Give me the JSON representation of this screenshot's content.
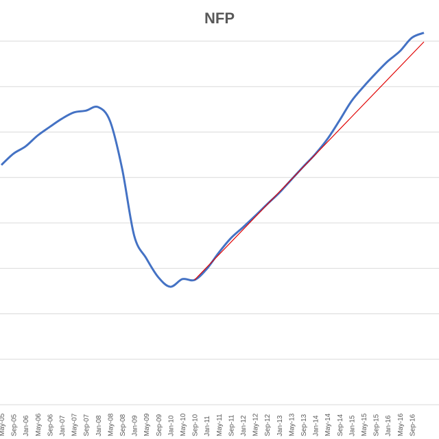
{
  "chart_data": {
    "type": "line",
    "title": "NFP",
    "xlabel": "",
    "ylabel": "",
    "grid": true,
    "x_tick_labels": [
      "May-05",
      "Sep-05",
      "Jan-06",
      "May-06",
      "Sep-06",
      "Jan-07",
      "May-07",
      "Sep-07",
      "Jan-08",
      "May-08",
      "Sep-08",
      "Jan-09",
      "May-09",
      "Sep-09",
      "Jan-10",
      "May-10",
      "Sep-10",
      "Jan-11",
      "May-11",
      "Sep-11",
      "Jan-12",
      "May-12",
      "Sep-12",
      "Jan-13",
      "May-13",
      "Sep-13",
      "Jan-14",
      "May-14",
      "Sep-14",
      "Jan-15",
      "May-15",
      "Sep-15",
      "Jan-16",
      "May-16",
      "Sep-16"
    ],
    "series": [
      {
        "color": "#4472C4",
        "x": [
          "May-05",
          "Sep-05",
          "Jan-06",
          "May-06",
          "Sep-06",
          "Jan-07",
          "May-07",
          "Sep-07",
          "Jan-08",
          "May-08",
          "Sep-08",
          "Jan-09",
          "May-09",
          "Sep-09",
          "Jan-10",
          "May-10",
          "Sep-10",
          "Jan-11",
          "May-11",
          "Sep-11",
          "Jan-12",
          "May-12",
          "Sep-12",
          "Jan-13",
          "May-13",
          "Sep-13",
          "Jan-14",
          "May-14",
          "Sep-14",
          "Jan-15",
          "May-15",
          "Sep-15",
          "Jan-16",
          "May-16",
          "Sep-16",
          "Jan-17"
        ],
        "values": [
          4.28,
          4.53,
          4.69,
          4.93,
          5.12,
          5.3,
          5.44,
          5.48,
          5.56,
          5.25,
          4.2,
          2.72,
          2.22,
          1.8,
          1.59,
          1.76,
          1.74,
          1.98,
          2.34,
          2.66,
          2.9,
          3.15,
          3.41,
          3.66,
          3.95,
          4.24,
          4.52,
          4.85,
          5.26,
          5.69,
          6.01,
          6.3,
          6.57,
          6.79,
          7.09,
          7.2
        ]
      },
      {
        "color": "#E00000",
        "x": [
          "Sep-10",
          "Jan-17"
        ],
        "values": [
          1.74,
          7.0
        ]
      }
    ]
  }
}
